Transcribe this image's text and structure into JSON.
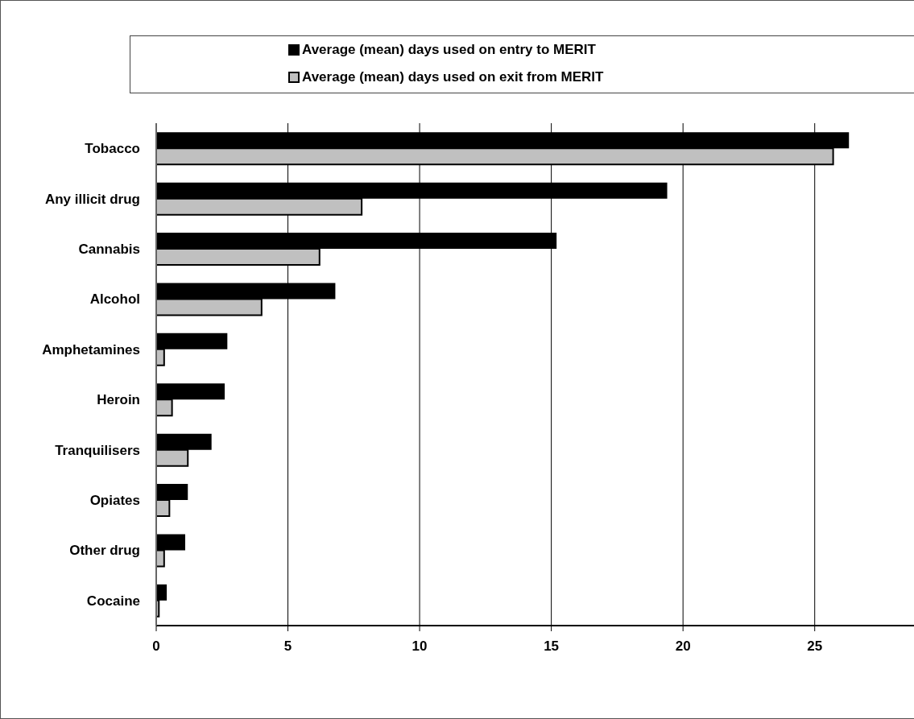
{
  "chart_data": {
    "type": "bar",
    "orientation": "horizontal",
    "categories": [
      "Tobacco",
      "Any illicit drug",
      "Cannabis",
      "Alcohol",
      "Amphetamines",
      "Heroin",
      "Tranquilisers",
      "Opiates",
      "Other drug",
      "Cocaine"
    ],
    "series": [
      {
        "name": "Average (mean) days used on entry to MERIT",
        "color": "#000000",
        "values": [
          26.3,
          19.4,
          15.2,
          6.8,
          2.7,
          2.6,
          2.1,
          1.2,
          1.1,
          0.4
        ]
      },
      {
        "name": "Average (mean) days used on exit from MERIT",
        "color": "#c0c0c0",
        "values": [
          25.7,
          7.8,
          6.2,
          4.0,
          0.3,
          0.6,
          1.2,
          0.5,
          0.3,
          0.1
        ]
      }
    ],
    "xlim": [
      0,
      28.8
    ],
    "xticks": [
      0,
      5,
      10,
      15,
      20,
      25
    ],
    "grid": "x",
    "legend": "top"
  }
}
